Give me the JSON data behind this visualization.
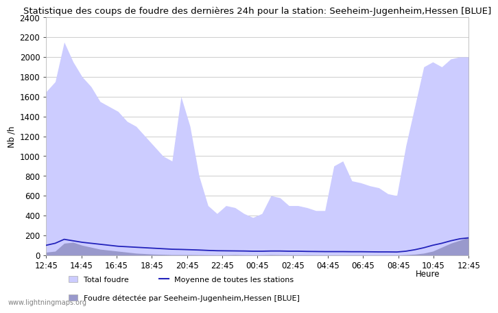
{
  "title": "Statistique des coups de foudre des dernières 24h pour la station: Seeheim-Jugenheim,Hessen [BLUE]",
  "ylabel": "Nb /h",
  "xlabel": "Heure",
  "watermark": "www.lightningmaps.org",
  "ylim": [
    0,
    2400
  ],
  "yticks": [
    0,
    200,
    400,
    600,
    800,
    1000,
    1200,
    1400,
    1600,
    1800,
    2000,
    2200,
    2400
  ],
  "xtick_labels": [
    "12:45",
    "14:45",
    "16:45",
    "18:45",
    "20:45",
    "22:45",
    "00:45",
    "02:45",
    "04:45",
    "06:45",
    "08:45",
    "10:45",
    "12:45"
  ],
  "legend_labels": [
    "Total foudre",
    "Moyenne de toutes les stations",
    "Foudre détectée par Seeheim-Jugenheim,Hessen [BLUE]"
  ],
  "fill_total_color": "#ccccff",
  "fill_station_color": "#9999cc",
  "line_moyenne_color": "#2222bb",
  "background_color": "#ffffff",
  "grid_color": "#cccccc",
  "title_fontsize": 9.5,
  "tick_fontsize": 8.5,
  "total_foudre": [
    1650,
    1750,
    2150,
    1950,
    1800,
    1700,
    1550,
    1500,
    1450,
    1350,
    1300,
    1200,
    1100,
    1000,
    950,
    1600,
    1300,
    800,
    500,
    420,
    500,
    480,
    420,
    380,
    420,
    600,
    580,
    500,
    500,
    480,
    450,
    450,
    900,
    950,
    750,
    730,
    700,
    680,
    620,
    600,
    1100,
    1500,
    1900,
    1950,
    1900,
    1980,
    2000,
    2000
  ],
  "station_foudre": [
    30,
    40,
    120,
    130,
    100,
    80,
    60,
    50,
    40,
    30,
    20,
    15,
    10,
    8,
    5,
    5,
    5,
    4,
    3,
    2,
    3,
    5,
    3,
    2,
    3,
    5,
    4,
    3,
    3,
    3,
    2,
    2,
    2,
    2,
    2,
    2,
    1,
    1,
    1,
    1,
    5,
    10,
    20,
    40,
    80,
    120,
    150,
    180
  ],
  "moyenne_foudre": [
    100,
    120,
    160,
    145,
    130,
    120,
    110,
    100,
    90,
    85,
    80,
    75,
    70,
    65,
    60,
    58,
    55,
    52,
    48,
    45,
    44,
    43,
    42,
    40,
    40,
    42,
    42,
    40,
    40,
    38,
    37,
    36,
    36,
    36,
    35,
    35,
    34,
    33,
    33,
    32,
    40,
    55,
    75,
    100,
    120,
    145,
    165,
    175
  ]
}
